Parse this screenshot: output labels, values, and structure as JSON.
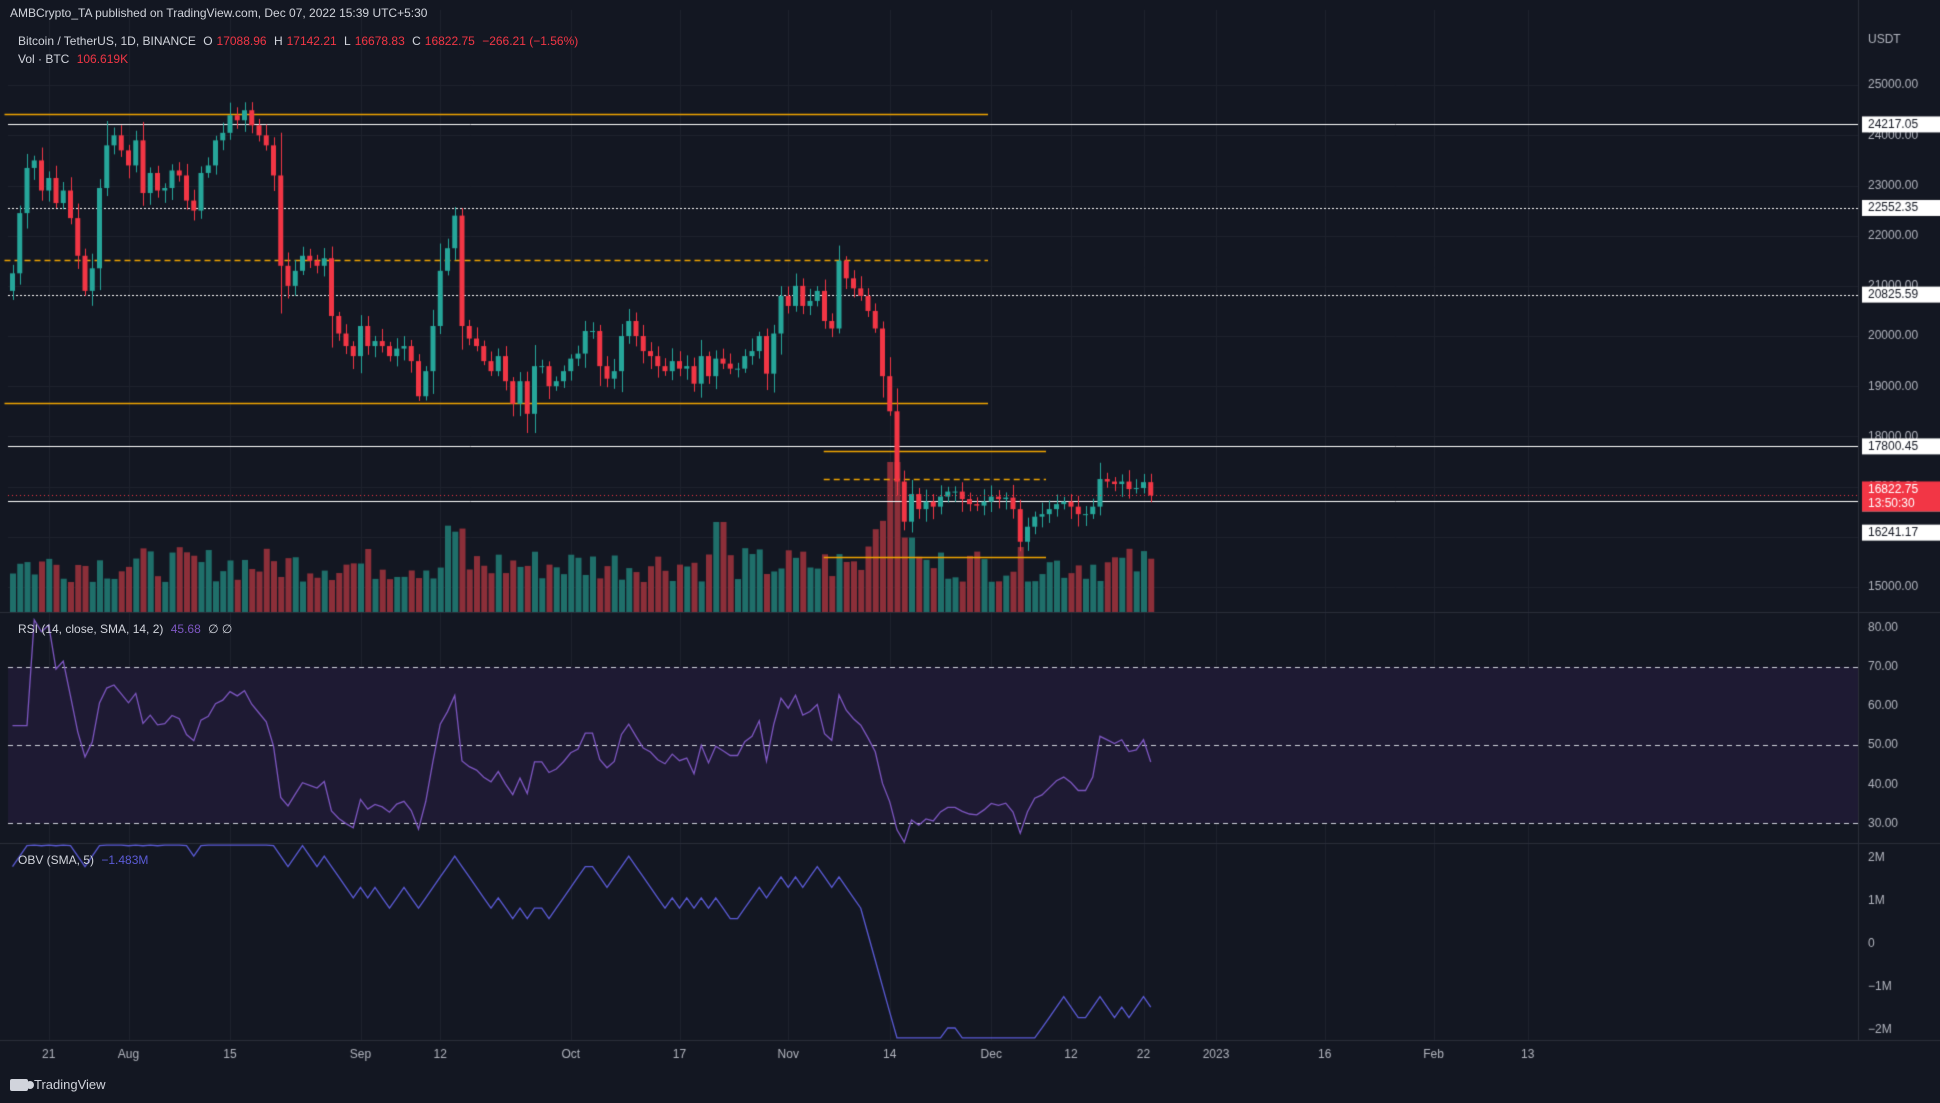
{
  "header": {
    "published": "AMBCrypto_TA published on TradingView.com, Dec 07, 2022 15:39 UTC+5:30"
  },
  "symbol_legend": {
    "title": "Bitcoin / TetherUS, 1D, BINANCE",
    "o_label": "O",
    "o_value": "17088.96",
    "h_label": "H",
    "h_value": "17142.21",
    "l_label": "L",
    "l_value": "16678.83",
    "c_label": "C",
    "c_value": "16822.75",
    "change": "−266.21 (−1.56%)"
  },
  "volume_legend": {
    "label": "Vol · BTC",
    "value": "106.619K"
  },
  "rsi_legend": {
    "label": "RSI (14, close, SMA, 14, 2)",
    "value": "45.68",
    "extra": "∅ ∅"
  },
  "obv_legend": {
    "label": "OBV (SMA, 5)",
    "value": "−1.483M"
  },
  "footer": {
    "brand": "TradingView"
  },
  "colors": {
    "background": "#131722",
    "up": "#26a69a",
    "down": "#f23645",
    "vol_up": "#1f6f6a",
    "vol_down": "#8c2f39",
    "orange_line": "#f0a500",
    "white_line": "#ffffff",
    "rsi_line": "#7e57c2",
    "obv_line": "#5b5bd6",
    "rsi_band": "#1e1a33",
    "axis_text": "#b2b5be"
  },
  "chart_data": [
    {
      "type": "candlestick",
      "title": "Bitcoin / TetherUS, 1D, BINANCE",
      "currency": "USDT",
      "y_ticks": [
        "15000.00",
        "16000.00",
        "17000.00",
        "18000.00",
        "19000.00",
        "20000.00",
        "21000.00",
        "22000.00",
        "23000.00",
        "24000.00",
        "25000.00"
      ],
      "ylim": [
        14500,
        25900
      ],
      "x_tick_labels": [
        "21",
        "Aug",
        "15",
        "Sep",
        "12",
        "Oct",
        "17",
        "Nov",
        "14",
        "Dec",
        "12",
        "22",
        "2023",
        "16",
        "Feb",
        "13"
      ],
      "x_tick_bar_index": [
        5,
        16,
        30,
        48,
        59,
        77,
        92,
        107,
        121,
        135,
        146,
        156,
        166,
        181,
        196,
        209
      ],
      "horizontal_lines": [
        {
          "price": 24217.05,
          "style": "solid",
          "color": "white",
          "label": "24217.05"
        },
        {
          "price": 22552.35,
          "style": "dotted",
          "color": "white",
          "label": "22552.35"
        },
        {
          "price": 20825.59,
          "style": "dotted",
          "color": "white",
          "label": "20825.59"
        },
        {
          "price": 17800.45,
          "style": "solid",
          "color": "white",
          "label": "17800.45"
        },
        {
          "price": 16704.89,
          "style": "solid",
          "color": "white",
          "label": "16704.89"
        },
        {
          "price": 16241.17,
          "style": "none",
          "color": "white",
          "label": "16241.17"
        }
      ],
      "orange_levels": [
        {
          "price": 24425,
          "style": "solid",
          "from_bar": 0,
          "to_bar": 134
        },
        {
          "price": 21520,
          "style": "dashed",
          "from_bar": 0,
          "to_bar": 134
        },
        {
          "price": 18660,
          "style": "solid",
          "from_bar": 0,
          "to_bar": 134
        },
        {
          "price": 17700,
          "style": "solid",
          "from_bar": 113,
          "to_bar": 142
        },
        {
          "price": 17150,
          "style": "dashed",
          "from_bar": 113,
          "to_bar": 142
        },
        {
          "price": 15600,
          "style": "solid",
          "from_bar": 113,
          "to_bar": 142
        }
      ],
      "last_price": {
        "price": 16822.75,
        "label": "16822.75",
        "countdown": "13:50:30"
      },
      "closes": [
        21250,
        22450,
        23350,
        23500,
        22900,
        23150,
        22650,
        22900,
        22350,
        21600,
        20900,
        21350,
        22950,
        23800,
        24000,
        23700,
        23400,
        23900,
        22850,
        23250,
        22900,
        22950,
        23300,
        23200,
        22700,
        22500,
        23250,
        23400,
        23900,
        24050,
        24400,
        24300,
        24500,
        24200,
        24000,
        23800,
        23200,
        21400,
        21000,
        21300,
        21600,
        21500,
        21400,
        21550,
        20400,
        20050,
        19800,
        19600,
        20200,
        19800,
        19900,
        19800,
        19600,
        19750,
        19800,
        19500,
        18800,
        19300,
        20200,
        21300,
        21750,
        22400,
        20200,
        19950,
        19800,
        19500,
        19300,
        19600,
        19100,
        18650,
        19100,
        18450,
        19400,
        19400,
        19000,
        19100,
        19300,
        19550,
        19650,
        20100,
        20100,
        19400,
        19150,
        19300,
        20000,
        20300,
        20000,
        19700,
        19600,
        19400,
        19300,
        19500,
        19350,
        19400,
        19050,
        19600,
        19200,
        19550,
        19450,
        19350,
        19350,
        19600,
        19700,
        20000,
        19250,
        20050,
        20800,
        20600,
        21000,
        20600,
        20700,
        20900,
        20300,
        20150,
        21500,
        21150,
        20950,
        20800,
        20500,
        20150,
        19200,
        18500,
        17100,
        16300,
        16850,
        16550,
        16700,
        16600,
        16800,
        16900,
        16900,
        16750,
        16650,
        16620,
        16700,
        16800,
        16750,
        16780,
        16550,
        15900,
        16200,
        16400,
        16450,
        16550,
        16650,
        16700,
        16600,
        16450,
        16450,
        16600,
        17150,
        17100,
        17050,
        17100,
        16950,
        16970,
        17088,
        16822
      ],
      "volume_note": "Volume bars rendered per candle; only last value printed: 106.619K"
    },
    {
      "type": "line",
      "name": "RSI (14, close, SMA, 14, 2)",
      "y_ticks": [
        "30.00",
        "40.00",
        "50.00",
        "60.00",
        "70.00",
        "80.00"
      ],
      "ylim": [
        25,
        84
      ],
      "bands": {
        "upper": 70,
        "middle": 50,
        "lower": 30
      },
      "last_value": 45.68
    },
    {
      "type": "line",
      "name": "OBV (SMA, 5)",
      "y_ticks": [
        "2M",
        "1M",
        "0",
        "−1M",
        "−2M"
      ],
      "ylim": [
        -2.25,
        2.35
      ],
      "last_value": -1.483
    }
  ]
}
